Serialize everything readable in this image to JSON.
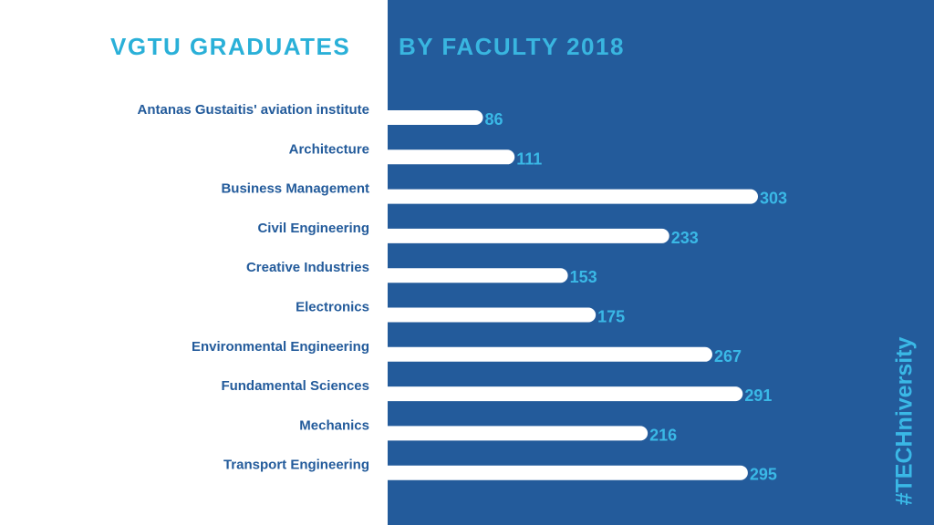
{
  "title": {
    "part1": "VGTU GRADUATES",
    "part2": "BY FACULTY 2018"
  },
  "hashtag": "#TECHniversity",
  "colors": {
    "panel": "#235b9b",
    "bar": "#ffffff",
    "value_label": "#3ab8e6",
    "category_label": "#235b9b",
    "title": "#2ab0d8"
  },
  "chart_data": {
    "type": "bar",
    "orientation": "horizontal",
    "title": "VGTU GRADUATES BY FACULTY 2018",
    "xlabel": "",
    "ylabel": "",
    "categories": [
      "Antanas Gustaitis' aviation institute",
      "Architecture",
      "Business Management",
      "Civil Engineering",
      "Creative Industries",
      "Electronics",
      "Environmental Engineering",
      "Fundamental Sciences",
      "Mechanics",
      "Transport Engineering"
    ],
    "values": [
      86,
      111,
      303,
      233,
      153,
      175,
      267,
      291,
      216,
      295
    ],
    "xlim": [
      0,
      303
    ],
    "grid": false,
    "legend": "none"
  }
}
